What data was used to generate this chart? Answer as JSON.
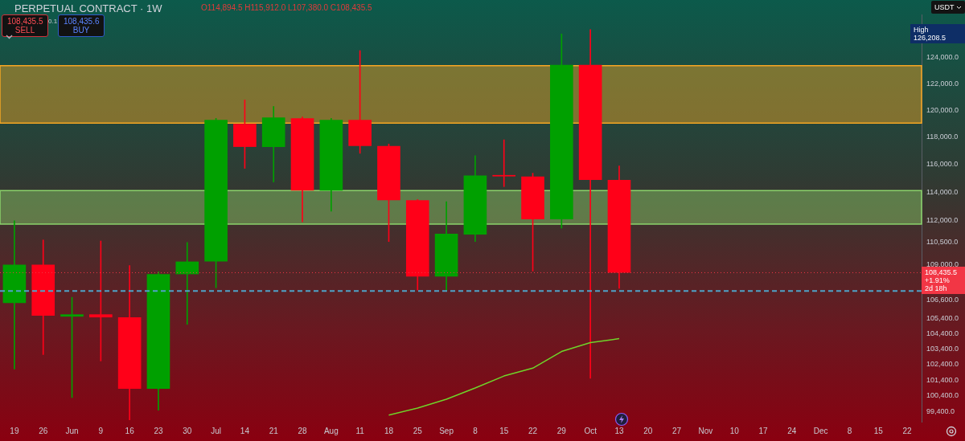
{
  "chart_data": {
    "type": "candlestick",
    "title": "PERPETUAL CONTRACT · 1W",
    "categories": [
      "19",
      "26",
      "Jun",
      "9",
      "16",
      "23",
      "30",
      "Jul",
      "14",
      "21",
      "28",
      "Aug",
      "11",
      "18",
      "25",
      "Sep",
      "8",
      "15",
      "22",
      "29",
      "Oct",
      "13",
      "20",
      "27",
      "Nov",
      "10",
      "17",
      "24",
      "Dec",
      "8",
      "15",
      "22"
    ],
    "ohlc": [
      [
        106400,
        112000,
        102100,
        108970
      ],
      [
        108970,
        110670,
        103030,
        105560
      ],
      [
        105500,
        106780,
        100300,
        105650
      ],
      [
        105650,
        110600,
        102620,
        105450
      ],
      [
        105450,
        108920,
        98910,
        100850
      ],
      [
        100850,
        108490,
        99510,
        108330
      ],
      [
        108330,
        110500,
        104990,
        109190
      ],
      [
        109190,
        119400,
        107420,
        119290
      ],
      [
        118990,
        120780,
        115730,
        117290
      ],
      [
        117290,
        120290,
        114750,
        119460
      ],
      [
        119400,
        119500,
        111930,
        114130
      ],
      [
        114130,
        119400,
        112670,
        119290
      ],
      [
        119290,
        124560,
        116820,
        117350
      ],
      [
        117350,
        117500,
        110560,
        113450
      ],
      [
        113450,
        113500,
        107260,
        108170
      ],
      [
        108170,
        113340,
        107200,
        111100
      ],
      [
        111050,
        116650,
        110560,
        115210
      ],
      [
        115250,
        117810,
        114420,
        115150
      ],
      [
        115140,
        115380,
        108540,
        112110
      ],
      [
        112110,
        125860,
        111490,
        123450
      ],
      [
        123450,
        126208.5,
        101510,
        114894.5
      ],
      [
        114894.5,
        115912.0,
        107380.0,
        108435.5
      ],
      null,
      null,
      null,
      null,
      null,
      null,
      null,
      null,
      null,
      null
    ],
    "colors": [
      "#00a000",
      "#ff0018",
      "#00a000",
      "#ff0018",
      "#ff0018",
      "#00a000",
      "#00a000",
      "#00a000",
      "#ff0018",
      "#00a000",
      "#ff0018",
      "#00a000",
      "#ff0018",
      "#ff0018",
      "#ff0018",
      "#00a000",
      "#00a000",
      "#ff0018",
      "#ff0018",
      "#00a000",
      "#ff0018",
      "#ff0018",
      null,
      null,
      null,
      null,
      null,
      null,
      null,
      null,
      null,
      null
    ],
    "series": [
      {
        "type": "line",
        "color": "#6fd42a",
        "values": [
          null,
          null,
          null,
          null,
          null,
          null,
          null,
          null,
          null,
          null,
          null,
          null,
          null,
          99210,
          99650,
          100200,
          100900,
          101660,
          102160,
          103230,
          103800,
          104060,
          null,
          null,
          null,
          null,
          null,
          null,
          null,
          null,
          null,
          null
        ]
      }
    ],
    "ylim": [
      98800,
      127400
    ],
    "yticks": [
      {
        "value": 99400,
        "label": "99,400.0"
      },
      {
        "value": 100400,
        "label": "100,400.0"
      },
      {
        "value": 101400,
        "label": "101,400.0"
      },
      {
        "value": 102400,
        "label": "102,400.0"
      },
      {
        "value": 103400,
        "label": "103,400.0"
      },
      {
        "value": 104400,
        "label": "104,400.0"
      },
      {
        "value": 105400,
        "label": "105,400.0"
      },
      {
        "value": 106600,
        "label": "106,600.0"
      },
      {
        "value": 109000,
        "label": "109,000.0"
      },
      {
        "value": 110500,
        "label": "110,500.0"
      },
      {
        "value": 112000,
        "label": "112,000.0"
      },
      {
        "value": 114000,
        "label": "114,000.0"
      },
      {
        "value": 116000,
        "label": "116,000.0"
      },
      {
        "value": 118000,
        "label": "118,000.0"
      },
      {
        "value": 120000,
        "label": "120,000.0"
      },
      {
        "value": 122000,
        "label": "122,000.0"
      },
      {
        "value": 124000,
        "label": "124,000.0"
      }
    ],
    "log": true,
    "grid": false,
    "legend": false,
    "bands": [
      {
        "axis": "y",
        "from": 119050,
        "to": 123390,
        "color": "#f5a623"
      },
      {
        "axis": "y",
        "from": 111770,
        "to": 114130,
        "color": "#8bd36b"
      }
    ],
    "ref_lines": [
      {
        "axis": "y",
        "value": 107200,
        "color": "#4fa3c7",
        "line_style": "dashed"
      },
      {
        "axis": "y",
        "value": 108435.5,
        "label": "108,435.5",
        "color": "#f23645",
        "line_style": "dotted"
      }
    ],
    "annotations": [
      "O114,894.5 H115,912.0 L107,380.0 C108,435.5",
      "108,435.5",
      "SELL",
      "0.1",
      "108,435.6",
      "BUY",
      "USDT",
      "High 126,208.5",
      "+1.91%",
      "2d 18h"
    ]
  }
}
